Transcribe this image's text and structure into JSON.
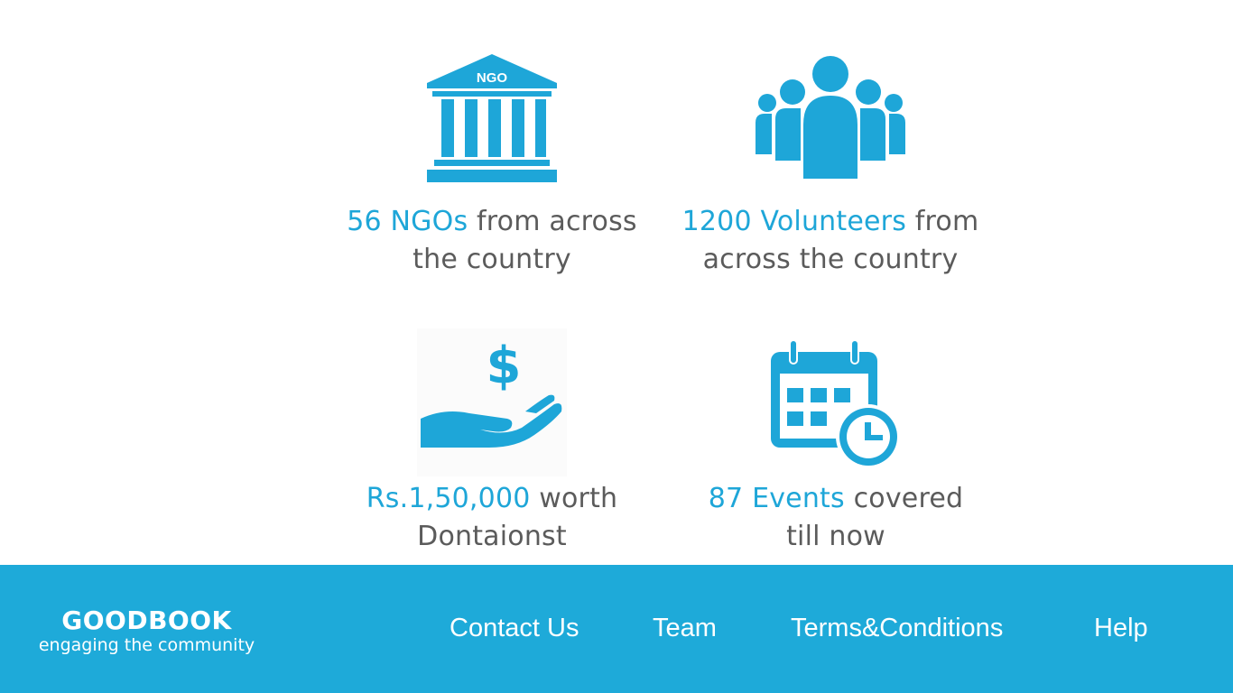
{
  "colors": {
    "accent": "#1ea6d8",
    "text": "#5b5b5b",
    "footer_bg": "#1eaad9",
    "white": "#ffffff"
  },
  "stats": [
    {
      "icon": "ngo-building-icon",
      "icon_label": "NGO",
      "highlight": "56 NGOs",
      "line1_rest": " from across",
      "line2": "the country"
    },
    {
      "icon": "volunteers-group-icon",
      "highlight": "1200 Volunteers",
      "line1_rest": " from",
      "line2": "across the country"
    },
    {
      "icon": "donation-hand-dollar-icon",
      "icon_label": "$",
      "highlight": "Rs.1,50,000",
      "line1_rest": " worth",
      "line2": "Dontaionst"
    },
    {
      "icon": "calendar-clock-icon",
      "highlight": "87 Events",
      "line1_rest": " covered",
      "line2": "till now"
    }
  ],
  "footer": {
    "brand_name": "GOODBOOK",
    "brand_tagline": "engaging the community",
    "links": [
      "Contact Us",
      "Team",
      "Terms&Conditions",
      "Help"
    ]
  }
}
